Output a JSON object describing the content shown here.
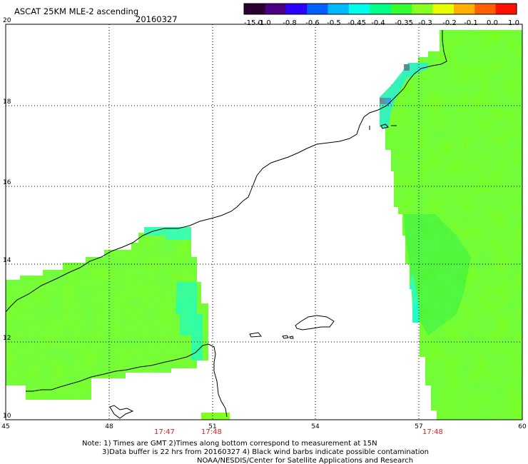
{
  "header": {
    "title": "ASCAT 25KM MLE-2 ascending",
    "date": "20160327"
  },
  "colorbar": {
    "labels": [
      "-15.0",
      "-1.0",
      "-0.8",
      "-0.6",
      "-0.5",
      "-0.45",
      "-0.4",
      "-0.35",
      "-0.3",
      "-0.2",
      "-0.1",
      "0.0",
      "1.0"
    ],
    "colors": [
      "#2a0033",
      "#4b0082",
      "#2c00ff",
      "#0060ff",
      "#00b8ff",
      "#00ffea",
      "#00ff88",
      "#33ff33",
      "#88ff22",
      "#e8ff00",
      "#ffb000",
      "#ff6000",
      "#ff1000"
    ]
  },
  "map": {
    "lon_labels": [
      "45",
      "48",
      "51",
      "54",
      "57",
      "60"
    ],
    "lat_labels": [
      "20",
      "18",
      "16",
      "14",
      "12",
      "10"
    ],
    "grid": true,
    "time_labels": [
      "17:47",
      "17:48",
      "17:48"
    ],
    "swath_color": "#88ff22"
  },
  "footer": {
    "line1": "Note: 1) Times are GMT 2)Times along bottom correspond to measurement at 15N",
    "line2": "3)Data buffer is 22 hrs from 20160327 4) Black wind barbs indicate possible contamination",
    "line3": "NOAA/NESDIS/Center for Satellite Applications and Research"
  }
}
